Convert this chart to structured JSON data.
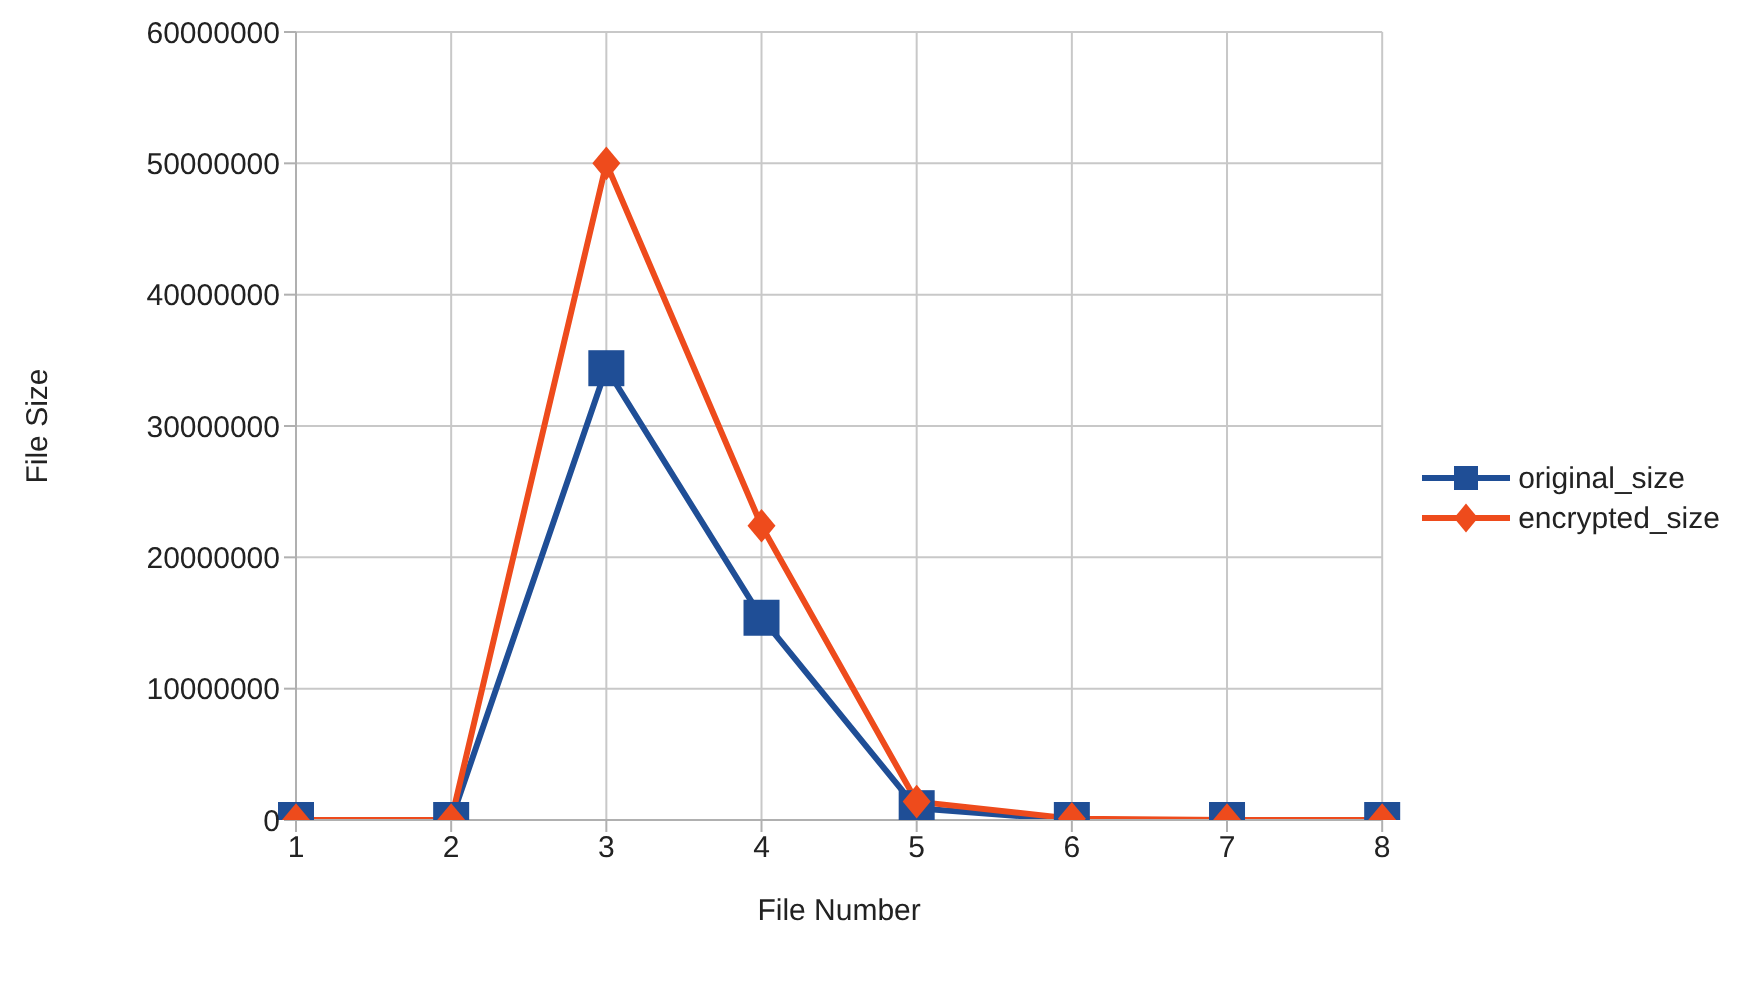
{
  "chart_data": {
    "type": "line",
    "xlabel": "File Number",
    "ylabel": "File Size",
    "categories": [
      "1",
      "2",
      "3",
      "4",
      "5",
      "6",
      "7",
      "8"
    ],
    "series": [
      {
        "name": "original_size",
        "color": "#1f4e96",
        "marker": "square",
        "values": [
          0,
          0,
          34400000,
          15400000,
          900000,
          0,
          0,
          0
        ]
      },
      {
        "name": "encrypted_size",
        "color": "#ee4b1c",
        "marker": "diamond",
        "values": [
          0,
          0,
          50000000,
          22400000,
          1400000,
          100000,
          0,
          0
        ]
      }
    ],
    "ylim": [
      0,
      60000000
    ],
    "yticks": [
      0,
      10000000,
      20000000,
      30000000,
      40000000,
      50000000,
      60000000
    ],
    "grid": true,
    "legend": "right",
    "line_style": "solid"
  }
}
